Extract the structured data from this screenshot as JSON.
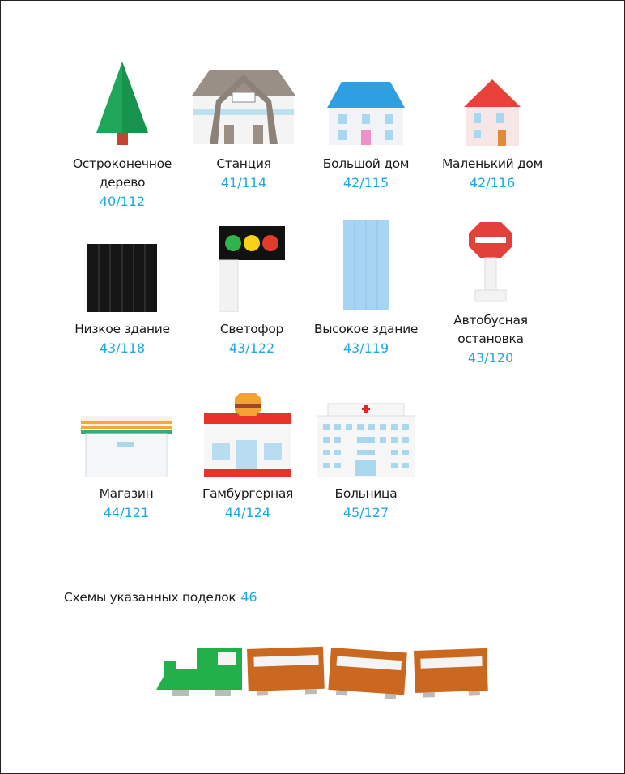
{
  "items": [
    {
      "label": "Остроконечное дерево",
      "label_lines": [
        "Остроконечное",
        "дерево"
      ],
      "page": "40/112",
      "icon": "tree"
    },
    {
      "label": "Станция",
      "page": "41/114",
      "icon": "station"
    },
    {
      "label": "Большой дом",
      "page": "42/115",
      "icon": "big-house"
    },
    {
      "label": "Маленький дом",
      "page": "42/116",
      "icon": "small-house"
    },
    {
      "label": "Низкое здание",
      "page": "43/118",
      "icon": "low-building"
    },
    {
      "label": "Светофор",
      "page": "43/122",
      "icon": "traffic-light"
    },
    {
      "label": "Высокое здание",
      "page": "43/119",
      "icon": "tall-building"
    },
    {
      "label": "Автобусная остановка",
      "label_lines": [
        "Автобусная",
        "остановка"
      ],
      "page": "43/120",
      "icon": "bus-stop"
    },
    {
      "label": "Магазин",
      "page": "44/121",
      "icon": "store"
    },
    {
      "label": "Гамбургерная",
      "page": "44/124",
      "icon": "hamburger-shop"
    },
    {
      "label": "Больница",
      "page": "45/127",
      "icon": "hospital"
    }
  ],
  "footer": {
    "text": "Схемы указанных поделок",
    "page": "46"
  },
  "colors": {
    "text": "#1a1a1a",
    "page_number": "#1fa8e0"
  }
}
